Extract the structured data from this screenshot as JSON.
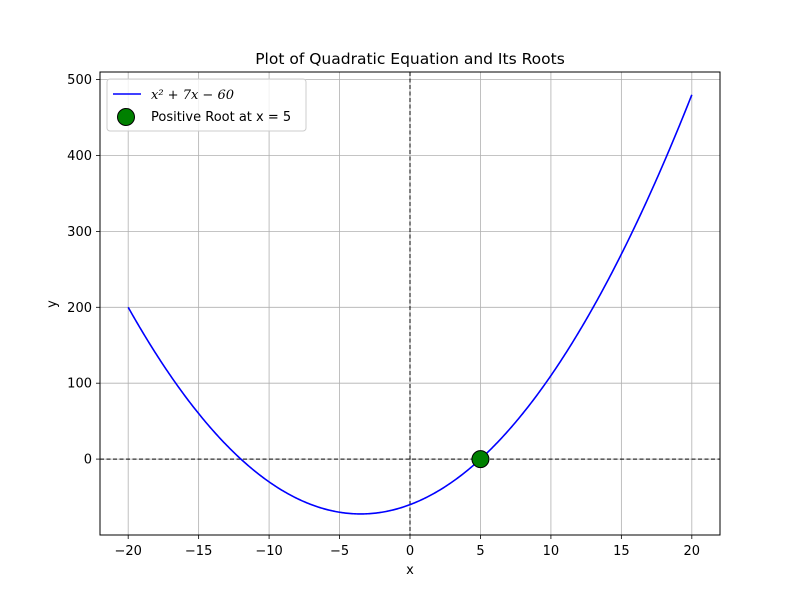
{
  "chart_data": {
    "type": "line",
    "title": "Plot of Quadratic Equation and Its Roots",
    "xlabel": "x",
    "ylabel": "y",
    "xlim": [
      -22,
      22
    ],
    "ylim": [
      -100,
      510
    ],
    "xticks": [
      -20,
      -15,
      -10,
      -5,
      0,
      5,
      10,
      15,
      20
    ],
    "xtick_labels": [
      "−20",
      "−15",
      "−10",
      "−5",
      "0",
      "5",
      "10",
      "15",
      "20"
    ],
    "yticks": [
      0,
      100,
      200,
      300,
      400,
      500
    ],
    "ytick_labels": [
      "0",
      "100",
      "200",
      "300",
      "400",
      "500"
    ],
    "grid": true,
    "legend_position": "top-left",
    "series": [
      {
        "name": "x² + 7x − 60",
        "kind": "line",
        "color": "#0000ff",
        "equation": {
          "a": 1,
          "b": 7,
          "c": -60
        },
        "x_range": [
          -20,
          20
        ]
      },
      {
        "name": "Positive Root at x = 5",
        "kind": "scatter",
        "color": "#008000",
        "edge_color": "#000000",
        "points": [
          {
            "x": 5,
            "y": 0
          }
        ]
      }
    ],
    "reference_lines": [
      {
        "orientation": "horizontal",
        "value": 0,
        "style": "dashed",
        "color": "#000000"
      },
      {
        "orientation": "vertical",
        "value": 0,
        "style": "dashed",
        "color": "#000000"
      }
    ]
  }
}
